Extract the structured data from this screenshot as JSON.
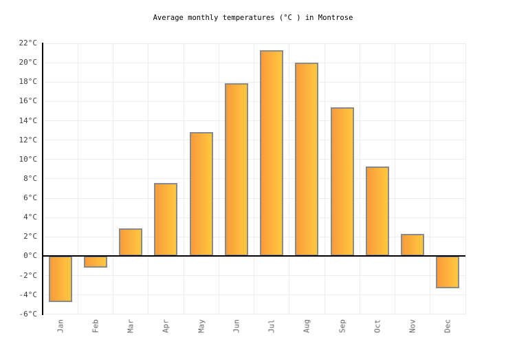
{
  "chart_data": {
    "type": "bar",
    "title": "Average monthly temperatures (°C ) in Montrose",
    "categories": [
      "Jan",
      "Feb",
      "Mar",
      "Apr",
      "May",
      "Jun",
      "Jul",
      "Aug",
      "Sep",
      "Oct",
      "Nov",
      "Dec"
    ],
    "values": [
      -4.7,
      -1.2,
      2.9,
      7.6,
      12.8,
      17.9,
      21.3,
      20.0,
      15.4,
      9.3,
      2.3,
      -3.3
    ],
    "xlabel": "",
    "ylabel": "",
    "ylim": [
      -6,
      22
    ],
    "ytick_step": 2,
    "yticks": [
      "22°C",
      "20°C",
      "18°C",
      "16°C",
      "14°C",
      "12°C",
      "10°C",
      "8°C",
      "6°C",
      "4°C",
      "2°C",
      "0°C",
      "-2°C",
      "-4°C",
      "-6°C"
    ],
    "grid": true,
    "legend_position": "none",
    "colors": {
      "bar_gradient_left": "#F99B3B",
      "bar_gradient_right": "#FFC83E",
      "bar_border": "#8A8A8A",
      "axis": "#000000",
      "gridline": "#EDEDED",
      "title_text": "#000000",
      "ytick_text": "#3C3C3C",
      "xtick_text": "#666666",
      "background": "#FFFFFF"
    }
  }
}
